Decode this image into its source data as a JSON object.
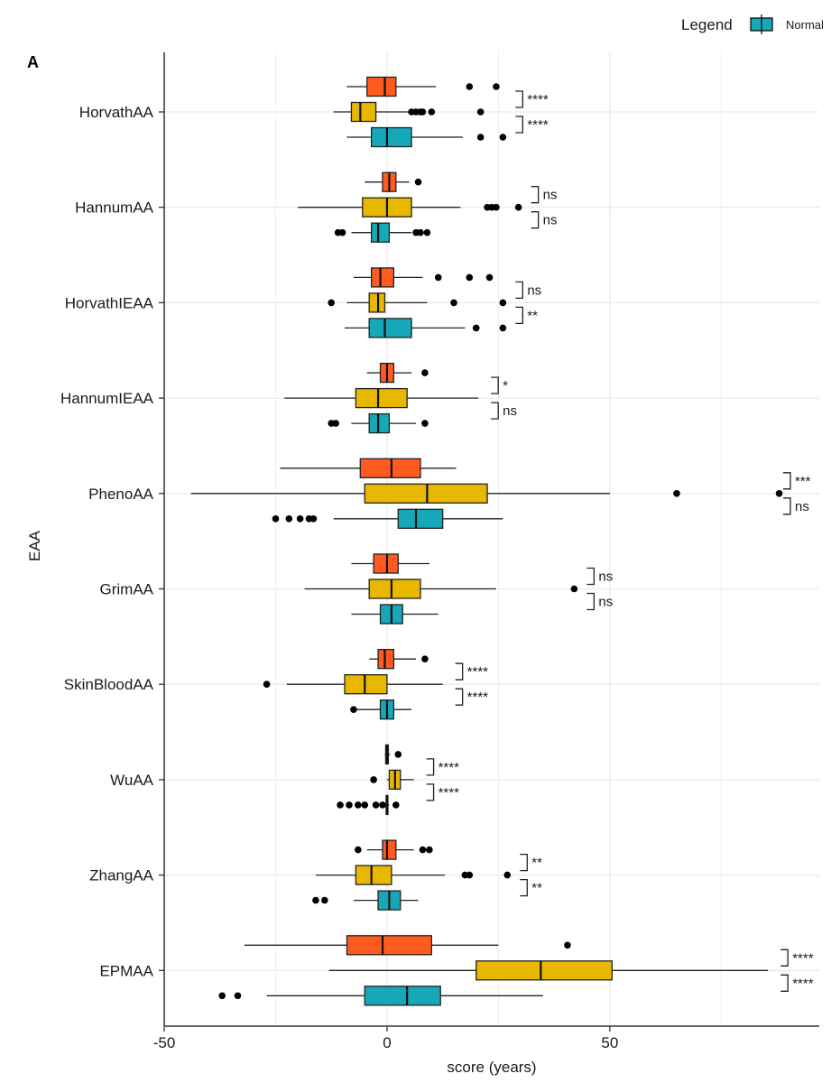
{
  "panel_label": "A",
  "legend": {
    "title": "Legend",
    "items": [
      {
        "label": "Normal",
        "color": "#17a8b8"
      }
    ]
  },
  "chart_data": {
    "type": "boxplot",
    "orientation": "horizontal",
    "xlabel": "score (years)",
    "ylabel": "EAA",
    "xlim": [
      -50,
      97
    ],
    "xticks": [
      -50,
      0,
      50
    ],
    "grid": true,
    "series_colors": [
      "#ff5a1f",
      "#e8b800",
      "#17a8b8"
    ],
    "categories": [
      "HorvathAA",
      "HannumAA",
      "HorvathIEAA",
      "HannumIEAA",
      "PhenoAA",
      "GrimAA",
      "SkinBloodAA",
      "WuAA",
      "ZhangAA",
      "EPMAA"
    ],
    "groups": [
      {
        "category": "HorvathAA",
        "boxes": [
          {
            "whislo": -9,
            "q1": -4.5,
            "med": -0.5,
            "q3": 2,
            "whishi": 11,
            "fliers": [
              18.5,
              24.5
            ]
          },
          {
            "whislo": -12,
            "q1": -8,
            "med": -6,
            "q3": -2.5,
            "whishi": 5,
            "fliers": [
              5.5,
              6.5,
              7.5,
              8,
              10,
              21
            ]
          },
          {
            "whislo": -9,
            "q1": -3.5,
            "med": 0,
            "q3": 5.5,
            "whishi": 17,
            "fliers": [
              21,
              26
            ]
          }
        ],
        "sig": [
          "****",
          "****"
        ]
      },
      {
        "category": "HannumAA",
        "boxes": [
          {
            "whislo": -5,
            "q1": -1,
            "med": 0.5,
            "q3": 2,
            "whishi": 5,
            "fliers": [
              7
            ]
          },
          {
            "whislo": -20,
            "q1": -5.5,
            "med": 0,
            "q3": 5.5,
            "whishi": 16.5,
            "fliers": [
              22.5,
              23.5,
              24.5,
              29.5
            ]
          },
          {
            "whislo": -8,
            "q1": -3.5,
            "med": -2,
            "q3": 0.5,
            "whishi": 5.5,
            "fliers": [
              -11,
              -10,
              6.5,
              7.5,
              9
            ]
          }
        ],
        "sig": [
          "ns",
          "ns"
        ]
      },
      {
        "category": "HorvathIEAA",
        "boxes": [
          {
            "whislo": -7.5,
            "q1": -3.5,
            "med": -1.5,
            "q3": 1.5,
            "whishi": 8,
            "fliers": [
              11.5,
              18.5,
              23
            ]
          },
          {
            "whislo": -9,
            "q1": -4,
            "med": -2,
            "q3": -0.5,
            "whishi": 9,
            "fliers": [
              -12.5,
              15,
              26
            ]
          },
          {
            "whislo": -9.5,
            "q1": -4,
            "med": -0.5,
            "q3": 5.5,
            "whishi": 17.5,
            "fliers": [
              20,
              26
            ]
          }
        ],
        "sig": [
          "ns",
          "**"
        ]
      },
      {
        "category": "HannumIEAA",
        "boxes": [
          {
            "whislo": -4.5,
            "q1": -1.5,
            "med": 0,
            "q3": 1.5,
            "whishi": 5.5,
            "fliers": [
              8.5
            ]
          },
          {
            "whislo": -23,
            "q1": -7,
            "med": -2,
            "q3": 4.5,
            "whishi": 20.5,
            "fliers": []
          },
          {
            "whislo": -8,
            "q1": -4,
            "med": -2,
            "q3": 0.5,
            "whishi": 6.5,
            "fliers": [
              -12.5,
              -11.5,
              8.5
            ]
          }
        ],
        "sig": [
          "*",
          "ns"
        ]
      },
      {
        "category": "PhenoAA",
        "boxes": [
          {
            "whislo": -24,
            "q1": -6,
            "med": 1,
            "q3": 7.5,
            "whishi": 15.5,
            "fliers": []
          },
          {
            "whislo": -44,
            "q1": -5,
            "med": 9,
            "q3": 22.5,
            "whishi": 50,
            "fliers": [
              65,
              88
            ]
          },
          {
            "whislo": -12,
            "q1": 2.5,
            "med": 6.5,
            "q3": 12.5,
            "whishi": 26,
            "fliers": [
              -25,
              -22,
              -19.5,
              -17.5,
              -16.5
            ]
          }
        ],
        "sig": [
          "***",
          "ns"
        ]
      },
      {
        "category": "GrimAA",
        "boxes": [
          {
            "whislo": -8,
            "q1": -3,
            "med": 0,
            "q3": 2.5,
            "whishi": 9.5,
            "fliers": []
          },
          {
            "whislo": -18.5,
            "q1": -4,
            "med": 1,
            "q3": 7.5,
            "whishi": 24.5,
            "fliers": [
              42
            ]
          },
          {
            "whislo": -8,
            "q1": -1.5,
            "med": 1,
            "q3": 3.5,
            "whishi": 11.5,
            "fliers": []
          }
        ],
        "sig": [
          "ns",
          "ns"
        ]
      },
      {
        "category": "SkinBloodAA",
        "boxes": [
          {
            "whislo": -4,
            "q1": -2,
            "med": -0.5,
            "q3": 1.5,
            "whishi": 6.5,
            "fliers": [
              8.5
            ]
          },
          {
            "whislo": -22.5,
            "q1": -9.5,
            "med": -5,
            "q3": 0,
            "whishi": 12.5,
            "fliers": [
              -27
            ]
          },
          {
            "whislo": -7.5,
            "q1": -1.5,
            "med": 0,
            "q3": 1.5,
            "whishi": 5.5,
            "fliers": [
              -7.5
            ]
          }
        ],
        "sig": [
          "****",
          "****"
        ]
      },
      {
        "category": "WuAA",
        "boxes": [
          {
            "whislo": -0.5,
            "q1": -0.3,
            "med": 0,
            "q3": 0.3,
            "whishi": 0.7,
            "fliers": [
              2.5
            ]
          },
          {
            "whislo": 0,
            "q1": 0.5,
            "med": 1.8,
            "q3": 3,
            "whishi": 6,
            "fliers": [
              -3
            ]
          },
          {
            "whislo": -0.5,
            "q1": -0.2,
            "med": 0,
            "q3": 0.2,
            "whishi": 0.5,
            "fliers": [
              -10.5,
              -8.5,
              -6.5,
              -5,
              -2.5,
              -1,
              2
            ]
          }
        ],
        "sig": [
          "****",
          "****"
        ]
      },
      {
        "category": "ZhangAA",
        "boxes": [
          {
            "whislo": -4.5,
            "q1": -1,
            "med": 0,
            "q3": 2,
            "whishi": 6,
            "fliers": [
              -6.5,
              8,
              9.5
            ]
          },
          {
            "whislo": -16,
            "q1": -7,
            "med": -3.5,
            "q3": 1,
            "whishi": 13,
            "fliers": [
              17.5,
              18.5,
              27
            ]
          },
          {
            "whislo": -7.5,
            "q1": -2,
            "med": 0.5,
            "q3": 3,
            "whishi": 7,
            "fliers": [
              -16,
              -14
            ]
          }
        ],
        "sig": [
          "**",
          "**"
        ]
      },
      {
        "category": "EPMAA",
        "boxes": [
          {
            "whislo": -32,
            "q1": -9,
            "med": -1,
            "q3": 10,
            "whishi": 25,
            "fliers": [
              40.5
            ]
          },
          {
            "whislo": -13,
            "q1": 20,
            "med": 34.5,
            "q3": 50.5,
            "whishi": 85.5,
            "fliers": []
          },
          {
            "whislo": -27,
            "q1": -5,
            "med": 4.5,
            "q3": 12,
            "whishi": 35,
            "fliers": [
              -37,
              -33.5
            ]
          }
        ],
        "sig": [
          "****",
          "****"
        ]
      }
    ]
  }
}
